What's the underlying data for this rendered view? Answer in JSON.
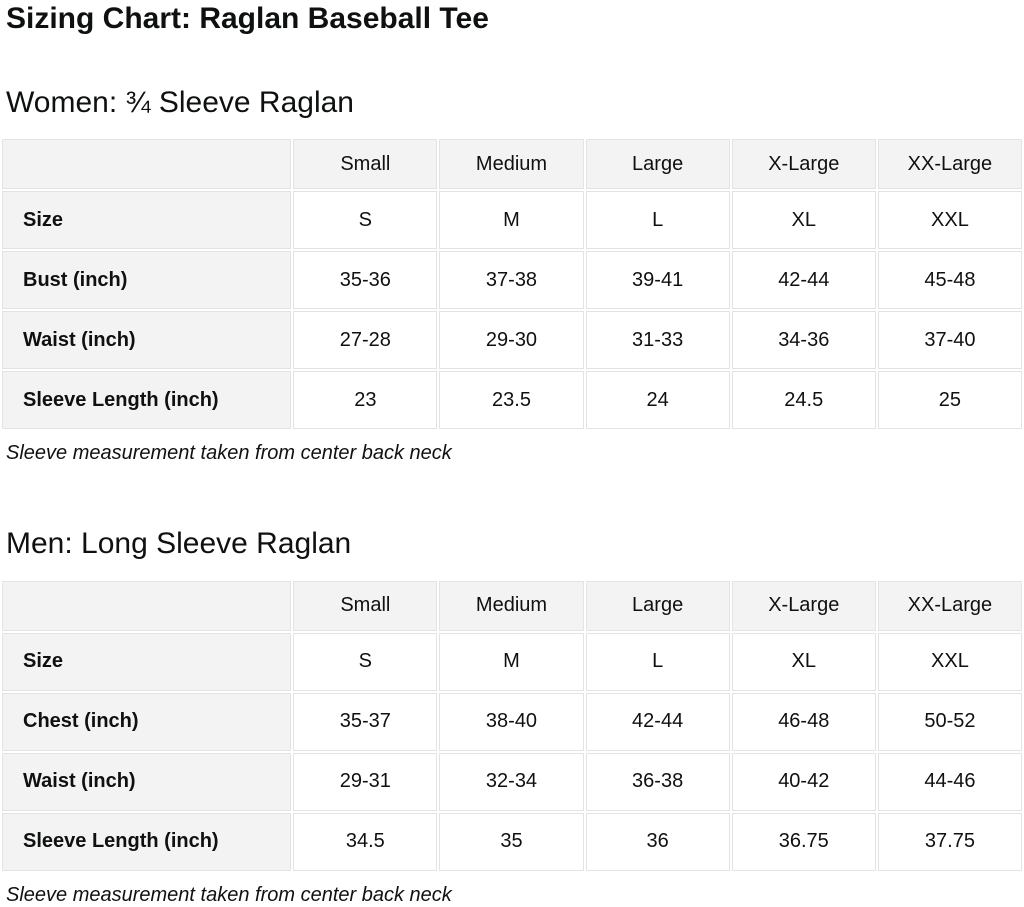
{
  "page": {
    "title": "Sizing Chart: Raglan Baseball Tee"
  },
  "tables": [
    {
      "heading": "Women: ¾ Sleeve Raglan",
      "columns": [
        "Small",
        "Medium",
        "Large",
        "X-Large",
        "XX-Large"
      ],
      "rows": [
        {
          "label": "Size",
          "values": [
            "S",
            "M",
            "L",
            "XL",
            "XXL"
          ]
        },
        {
          "label": "Bust (inch)",
          "values": [
            "35-36",
            "37-38",
            "39-41",
            "42-44",
            "45-48"
          ]
        },
        {
          "label": "Waist (inch)",
          "values": [
            "27-28",
            "29-30",
            "31-33",
            "34-36",
            "37-40"
          ]
        },
        {
          "label": "Sleeve Length (inch)",
          "values": [
            "23",
            "23.5",
            "24",
            "24.5",
            "25"
          ]
        }
      ],
      "note": "Sleeve measurement taken from center back neck"
    },
    {
      "heading": "Men: Long Sleeve Raglan",
      "columns": [
        "Small",
        "Medium",
        "Large",
        "X-Large",
        "XX-Large"
      ],
      "rows": [
        {
          "label": "Size",
          "values": [
            "S",
            "M",
            "L",
            "XL",
            "XXL"
          ]
        },
        {
          "label": "Chest (inch)",
          "values": [
            "35-37",
            "38-40",
            "42-44",
            "46-48",
            "50-52"
          ]
        },
        {
          "label": "Waist (inch)",
          "values": [
            "29-31",
            "32-34",
            "36-38",
            "40-42",
            "44-46"
          ]
        },
        {
          "label": "Sleeve Length (inch)",
          "values": [
            "34.5",
            "35",
            "36",
            "36.75",
            "37.75"
          ]
        }
      ],
      "note": "Sleeve measurement taken from center back neck"
    }
  ]
}
